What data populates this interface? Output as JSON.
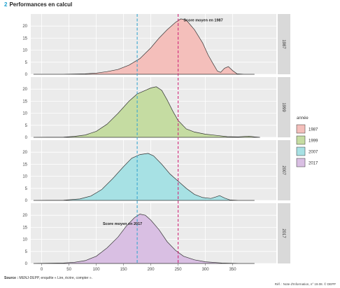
{
  "header": {
    "number": "2",
    "title": "Performances en calcul"
  },
  "footer": {
    "source_label": "Source :",
    "source_text": "MENJ-DEPP, enquête « Lire, écrire, compter ».",
    "reference": "Réf. : Note d'Information, n° 19.08. © DEPP"
  },
  "chart_data": {
    "type": "area",
    "subtype": "faceted density",
    "xlim": [
      -20,
      430
    ],
    "ylim": [
      0,
      25
    ],
    "x_ticks": [
      0,
      50,
      100,
      150,
      200,
      250,
      300,
      350
    ],
    "y_ticks": [
      0,
      5,
      10,
      15,
      20
    ],
    "legend": {
      "title": "année",
      "position": "right"
    },
    "reference_lines": [
      {
        "x": 175,
        "color": "#3aa6d0",
        "style": "dashed"
      },
      {
        "x": 250,
        "color": "#d0287a",
        "style": "dashed"
      }
    ],
    "annotations": [
      {
        "panel": "1987",
        "text": "Score moyen en 1987",
        "x": 260,
        "y": 22
      },
      {
        "panel": "2017",
        "text": "Score moyen en 2017",
        "x": 112,
        "y": 16
      }
    ],
    "panels": [
      {
        "name": "1987",
        "fill": "#f4bfbb",
        "points": [
          [
            -15,
            0
          ],
          [
            40,
            0
          ],
          [
            80,
            0.2
          ],
          [
            100,
            0.5
          ],
          [
            120,
            1.1
          ],
          [
            140,
            2
          ],
          [
            160,
            3.8
          ],
          [
            180,
            6.5
          ],
          [
            200,
            11
          ],
          [
            215,
            15
          ],
          [
            230,
            18.5
          ],
          [
            245,
            21.5
          ],
          [
            255,
            23
          ],
          [
            265,
            22.5
          ],
          [
            280,
            18.5
          ],
          [
            295,
            13
          ],
          [
            305,
            8
          ],
          [
            315,
            4
          ],
          [
            322,
            1.3
          ],
          [
            328,
            0.8
          ],
          [
            335,
            2.5
          ],
          [
            342,
            3.2
          ],
          [
            350,
            1.5
          ],
          [
            358,
            0.2
          ],
          [
            370,
            0
          ],
          [
            390,
            0
          ]
        ]
      },
      {
        "name": "1999",
        "fill": "#c5dca2",
        "points": [
          [
            -15,
            0
          ],
          [
            40,
            0.1
          ],
          [
            60,
            0.4
          ],
          [
            80,
            1
          ],
          [
            100,
            2.5
          ],
          [
            120,
            5.5
          ],
          [
            140,
            10
          ],
          [
            160,
            15
          ],
          [
            175,
            18
          ],
          [
            190,
            19.5
          ],
          [
            200,
            20.5
          ],
          [
            210,
            21
          ],
          [
            220,
            19.5
          ],
          [
            230,
            15.5
          ],
          [
            240,
            11
          ],
          [
            250,
            7
          ],
          [
            265,
            3.5
          ],
          [
            280,
            2.2
          ],
          [
            300,
            1.3
          ],
          [
            320,
            0.8
          ],
          [
            340,
            0.3
          ],
          [
            360,
            0.2
          ],
          [
            380,
            0.5
          ],
          [
            390,
            0.2
          ],
          [
            400,
            0
          ]
        ]
      },
      {
        "name": "2007",
        "fill": "#a7e1e4",
        "points": [
          [
            -15,
            0
          ],
          [
            40,
            0.1
          ],
          [
            70,
            0.6
          ],
          [
            90,
            1.8
          ],
          [
            110,
            4.5
          ],
          [
            130,
            9
          ],
          [
            150,
            14
          ],
          [
            165,
            17.5
          ],
          [
            180,
            19
          ],
          [
            195,
            19.5
          ],
          [
            205,
            18.5
          ],
          [
            220,
            15
          ],
          [
            235,
            11
          ],
          [
            250,
            8
          ],
          [
            265,
            5
          ],
          [
            280,
            2.5
          ],
          [
            295,
            1.2
          ],
          [
            310,
            0.8
          ],
          [
            320,
            1.5
          ],
          [
            326,
            2
          ],
          [
            335,
            1
          ],
          [
            345,
            0.2
          ],
          [
            360,
            0
          ],
          [
            390,
            0
          ]
        ]
      },
      {
        "name": "2017",
        "fill": "#d9bfe3",
        "points": [
          [
            -15,
            0
          ],
          [
            40,
            0.2
          ],
          [
            60,
            0.5
          ],
          [
            80,
            1.2
          ],
          [
            100,
            3
          ],
          [
            120,
            6.5
          ],
          [
            140,
            11
          ],
          [
            155,
            15.5
          ],
          [
            170,
            19
          ],
          [
            180,
            20.5
          ],
          [
            190,
            20
          ],
          [
            200,
            18
          ],
          [
            215,
            14
          ],
          [
            230,
            9
          ],
          [
            245,
            5.5
          ],
          [
            260,
            3
          ],
          [
            280,
            1.5
          ],
          [
            300,
            0.7
          ],
          [
            330,
            0.2
          ],
          [
            360,
            0
          ],
          [
            390,
            0
          ]
        ]
      }
    ]
  }
}
